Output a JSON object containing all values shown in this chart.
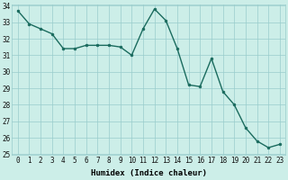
{
  "x": [
    0,
    1,
    2,
    3,
    4,
    5,
    6,
    7,
    8,
    9,
    10,
    11,
    12,
    13,
    14,
    15,
    16,
    17,
    18,
    19,
    20,
    21,
    22,
    23
  ],
  "y": [
    33.7,
    32.9,
    32.6,
    32.3,
    31.4,
    31.4,
    31.6,
    31.6,
    31.6,
    31.5,
    31.0,
    32.6,
    33.8,
    33.1,
    31.4,
    29.2,
    29.1,
    30.8,
    28.8,
    28.0,
    26.6,
    25.8,
    25.4,
    25.6
  ],
  "line_color": "#1a6b5e",
  "marker": "o",
  "markersize": 2.0,
  "linewidth": 1.0,
  "xlabel": "Humidex (Indice chaleur)",
  "ylim": [
    25,
    34
  ],
  "xlim": [
    -0.5,
    23.5
  ],
  "yticks": [
    25,
    26,
    27,
    28,
    29,
    30,
    31,
    32,
    33,
    34
  ],
  "xticks": [
    0,
    1,
    2,
    3,
    4,
    5,
    6,
    7,
    8,
    9,
    10,
    11,
    12,
    13,
    14,
    15,
    16,
    17,
    18,
    19,
    20,
    21,
    22,
    23
  ],
  "bg_color": "#cceee8",
  "grid_color": "#99cccc",
  "tick_fontsize": 5.5,
  "xlabel_fontsize": 6.5
}
